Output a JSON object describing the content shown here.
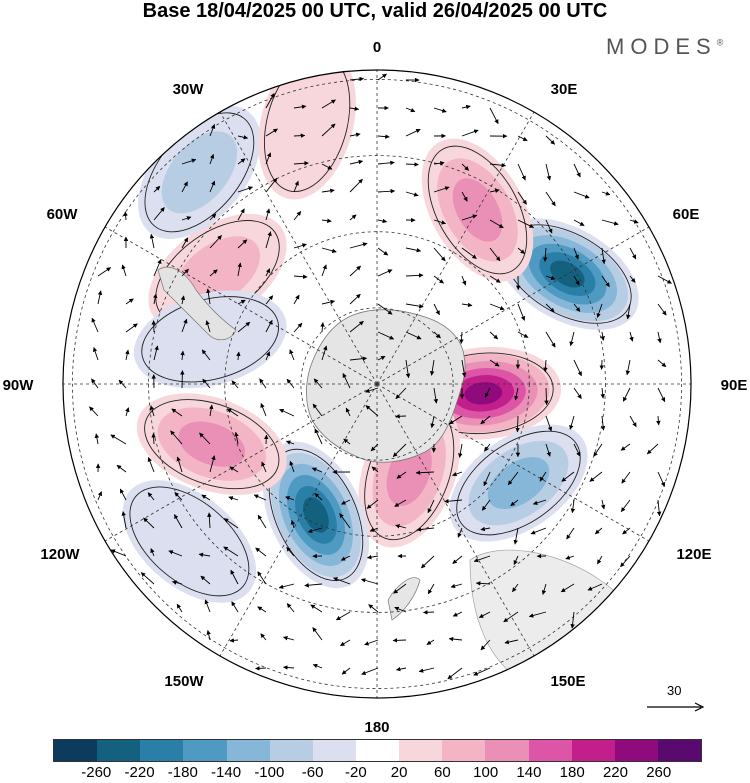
{
  "title": "Base 18/04/2025 00 UTC, valid 26/04/2025 00 UTC",
  "logo": "MODES",
  "logo_mark": "®",
  "longitude_labels": {
    "n": "0",
    "s": "180",
    "e90": "90E",
    "w90": "90W",
    "e30": "30E",
    "w30": "30W",
    "e60": "60E",
    "w60": "60W",
    "e120": "120E",
    "w120": "120W",
    "e150": "150E",
    "w150": "150W"
  },
  "reference_vector": "30",
  "colorbar": {
    "colors": [
      "#0d3b5e",
      "#14607f",
      "#2a7fa8",
      "#4f9ac3",
      "#87b7d8",
      "#b7cde4",
      "#dcdff0",
      "#ffffff",
      "#f7d7dc",
      "#f3b5c6",
      "#ea8fb6",
      "#dc55a6",
      "#c21f8c",
      "#8f0a7c",
      "#5a0a6e"
    ],
    "ticks": [
      "-260",
      "-220",
      "-180",
      "-140",
      "-100",
      "-60",
      "-20",
      "20",
      "60",
      "100",
      "140",
      "180",
      "220",
      "260"
    ]
  },
  "anomalies": [
    {
      "lon": 95,
      "colat": 0.34,
      "value": 240
    },
    {
      "lon": 60,
      "colat": 0.7,
      "value": -260
    },
    {
      "lon": 30,
      "colat": 0.64,
      "value": 140
    },
    {
      "lon": 125,
      "colat": 0.55,
      "value": -140
    },
    {
      "lon": 160,
      "colat": 0.3,
      "value": 140
    },
    {
      "lon": 205,
      "colat": 0.46,
      "value": -240
    },
    {
      "lon": 250,
      "colat": 0.56,
      "value": 140
    },
    {
      "lon": 305,
      "colat": 0.62,
      "value": 100
    },
    {
      "lon": 320,
      "colat": 0.88,
      "value": -100
    },
    {
      "lon": 345,
      "colat": 0.86,
      "value": 60
    },
    {
      "lon": 285,
      "colat": 0.55,
      "value": -60
    },
    {
      "lon": 230,
      "colat": 0.78,
      "value": -60
    }
  ]
}
